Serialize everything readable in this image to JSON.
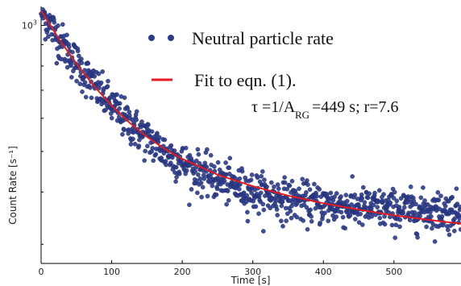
{
  "chart_data": {
    "type": "scatter",
    "xlabel": "Time [s]",
    "ylabel": "Count Rate [s⁻¹]",
    "xlim": [
      0,
      595
    ],
    "ylim": [
      270,
      1110
    ],
    "yscale": "log",
    "x_ticks": [
      0,
      100,
      200,
      300,
      400,
      500
    ],
    "y_ticks": [
      {
        "value": 1000,
        "base": "10",
        "exp": "3"
      }
    ],
    "grid": false,
    "legend_position": "top-right",
    "series": [
      {
        "name": "Neutral particle rate",
        "kind": "scatter",
        "color": "#2b3c8c",
        "x_start": 0,
        "x_end": 595,
        "x_step": 0.6,
        "model": {
          "baseline": 357,
          "amplitude": 727,
          "tau": 108
        },
        "scatter_fraction": 0.055
      },
      {
        "name": "Fit to eqn. (1).",
        "kind": "line",
        "color": "#e41a1c",
        "x": [
          0,
          25,
          50,
          75,
          100,
          125,
          150,
          175,
          200,
          250,
          300,
          350,
          400,
          450,
          500,
          550,
          595
        ],
        "y": [
          1084,
          930,
          810,
          716,
          643,
          586,
          542,
          507,
          480,
          440,
          413,
          392,
          376,
          363,
          352,
          343,
          336
        ]
      }
    ],
    "annotation": {
      "tau": "τ",
      "main": "=1/A",
      "subscript": "RG",
      "tail": "=449 s; r=7.6"
    }
  }
}
